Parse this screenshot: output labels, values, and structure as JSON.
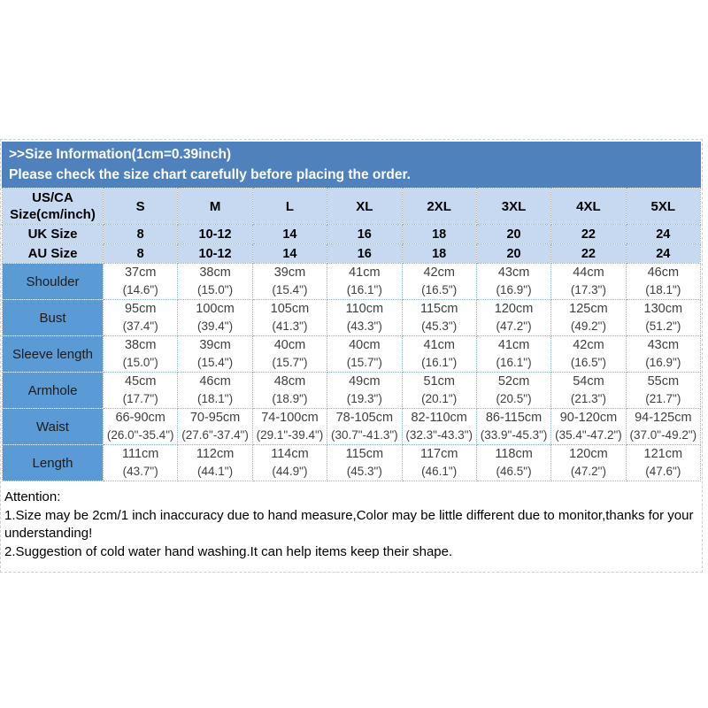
{
  "banner": {
    "line1": ">>Size Information(1cm=0.39inch)",
    "line2": "Please check the size chart carefully before placing the order."
  },
  "table": {
    "corner_header": [
      "US/CA",
      "Size(cm/inch)"
    ],
    "size_columns": [
      "S",
      "M",
      "L",
      "XL",
      "2XL",
      "3XL",
      "4XL",
      "5XL"
    ],
    "size_rows": [
      {
        "label": "UK Size",
        "values": [
          "8",
          "10-12",
          "14",
          "16",
          "18",
          "20",
          "22",
          "24"
        ]
      },
      {
        "label": "AU Size",
        "values": [
          "8",
          "10-12",
          "14",
          "16",
          "18",
          "20",
          "22",
          "24"
        ]
      }
    ],
    "measurement_rows": [
      {
        "label": "Shoulder",
        "cells": [
          {
            "cm": "37cm",
            "inch": "(14.6\")"
          },
          {
            "cm": "38cm",
            "inch": "(15.0\")"
          },
          {
            "cm": "39cm",
            "inch": "(15.4\")"
          },
          {
            "cm": "41cm",
            "inch": "(16.1\")"
          },
          {
            "cm": "42cm",
            "inch": "(16.5\")"
          },
          {
            "cm": "43cm",
            "inch": "(16.9\")"
          },
          {
            "cm": "44cm",
            "inch": "(17.3\")"
          },
          {
            "cm": "46cm",
            "inch": "(18.1\")"
          }
        ]
      },
      {
        "label": "Bust",
        "cells": [
          {
            "cm": "95cm",
            "inch": "(37.4\")"
          },
          {
            "cm": "100cm",
            "inch": "(39.4\")"
          },
          {
            "cm": "105cm",
            "inch": "(41.3\")"
          },
          {
            "cm": "110cm",
            "inch": "(43.3\")"
          },
          {
            "cm": "115cm",
            "inch": "(45.3\")"
          },
          {
            "cm": "120cm",
            "inch": "(47.2\")"
          },
          {
            "cm": "125cm",
            "inch": "(49.2\")"
          },
          {
            "cm": "130cm",
            "inch": "(51.2\")"
          }
        ]
      },
      {
        "label": "Sleeve length",
        "cells": [
          {
            "cm": "38cm",
            "inch": "(15.0\")"
          },
          {
            "cm": "39cm",
            "inch": "(15.4\")"
          },
          {
            "cm": "40cm",
            "inch": "(15.7\")"
          },
          {
            "cm": "40cm",
            "inch": "(15.7\")"
          },
          {
            "cm": "41cm",
            "inch": "(16.1\")"
          },
          {
            "cm": "41cm",
            "inch": "(16.1\")"
          },
          {
            "cm": "42cm",
            "inch": "(16.5\")"
          },
          {
            "cm": "43cm",
            "inch": "(16.9\")"
          }
        ]
      },
      {
        "label": "Armhole",
        "cells": [
          {
            "cm": "45cm",
            "inch": "(17.7\")"
          },
          {
            "cm": "46cm",
            "inch": "(18.1\")"
          },
          {
            "cm": "48cm",
            "inch": "(18.9\")"
          },
          {
            "cm": "49cm",
            "inch": "(19.3\")"
          },
          {
            "cm": "51cm",
            "inch": "(20.1\")"
          },
          {
            "cm": "52cm",
            "inch": "(20.5\")"
          },
          {
            "cm": "54cm",
            "inch": "(21.3\")"
          },
          {
            "cm": "55cm",
            "inch": "(21.7\")"
          }
        ]
      },
      {
        "label": "Waist",
        "cells": [
          {
            "cm": "66-90cm",
            "inch": "(26.0\"-35.4\")"
          },
          {
            "cm": "70-95cm",
            "inch": "(27.6\"-37.4\")"
          },
          {
            "cm": "74-100cm",
            "inch": "(29.1\"-39.4\")"
          },
          {
            "cm": "78-105cm",
            "inch": "(30.7\"-41.3\")"
          },
          {
            "cm": "82-110cm",
            "inch": "(32.3\"-43.3\")"
          },
          {
            "cm": "86-115cm",
            "inch": "(33.9\"-45.3\")"
          },
          {
            "cm": "90-120cm",
            "inch": "(35.4\"-47.2\")"
          },
          {
            "cm": "94-125cm",
            "inch": "(37.0\"-49.2\")"
          }
        ]
      },
      {
        "label": "Length",
        "cells": [
          {
            "cm": "111cm",
            "inch": "(43.7\")"
          },
          {
            "cm": "112cm",
            "inch": "(44.1\")"
          },
          {
            "cm": "114cm",
            "inch": "(44.9\")"
          },
          {
            "cm": "115cm",
            "inch": "(45.3\")"
          },
          {
            "cm": "117cm",
            "inch": "(46.1\")"
          },
          {
            "cm": "118cm",
            "inch": "(46.5\")"
          },
          {
            "cm": "120cm",
            "inch": "(47.2\")"
          },
          {
            "cm": "121cm",
            "inch": "(47.6\")"
          }
        ]
      }
    ]
  },
  "attention": {
    "title": "Attention:",
    "line1": "1.Size may be 2cm/1 inch inaccuracy due to hand measure,Color may be little different due to monitor,thanks for your understanding!",
    "line2": "2.Suggestion of cold water hand washing.It can help items keep their shape."
  },
  "colors": {
    "banner_bg": "#4f81bd",
    "header_cell_bg": "#c6d9f1",
    "label_cell_bg": "#5b9bd5",
    "dotted_border": "#95b3d7",
    "data_text": "#3f3f3f"
  }
}
